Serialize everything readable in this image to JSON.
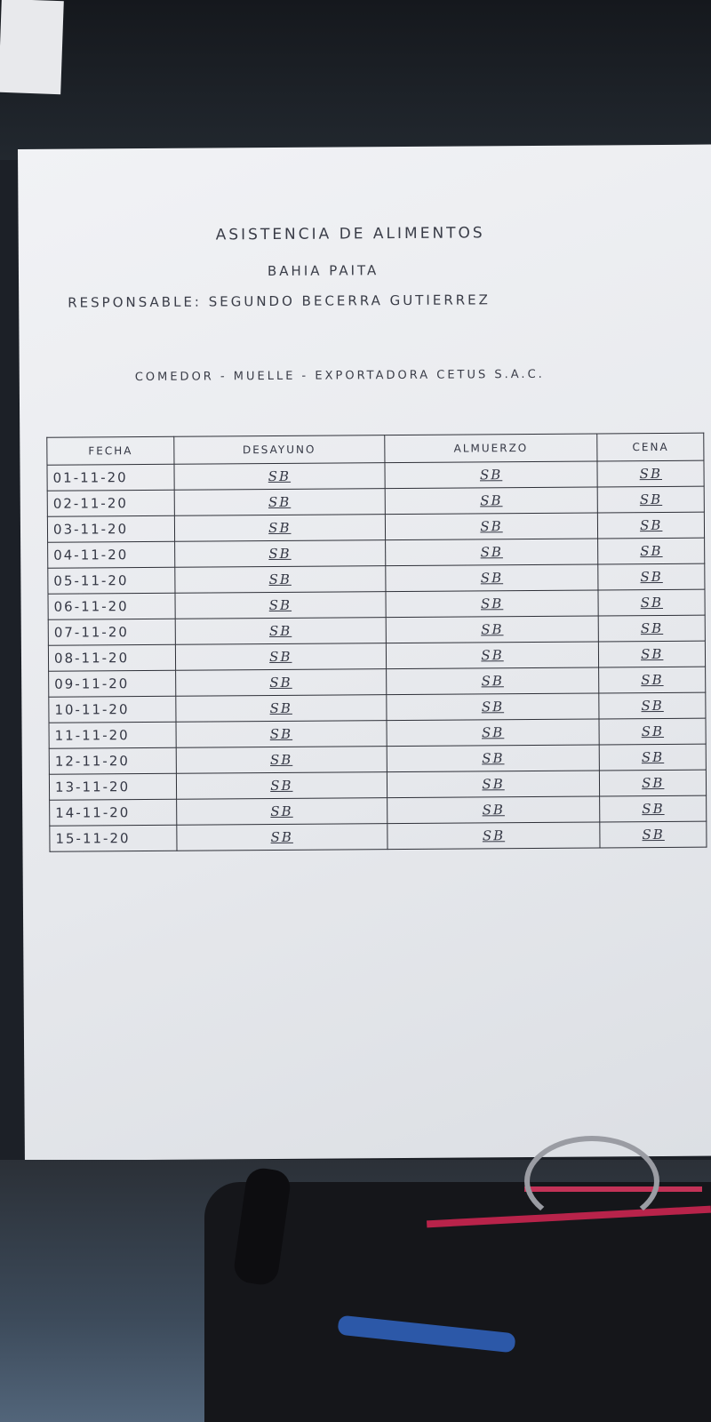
{
  "document": {
    "title": "ASISTENCIA DE ALIMENTOS",
    "location": "BAHIA PAITA",
    "responsible": "RESPONSABLE: SEGUNDO BECERRA GUTIERREZ",
    "dining": "COMEDOR - MUELLE - EXPORTADORA CETUS S.A.C."
  },
  "table": {
    "headers": [
      "FECHA",
      "DESAYUNO",
      "ALMUERZO",
      "CENA"
    ],
    "rows": [
      [
        "01-11-20",
        "SB",
        "SB",
        "SB"
      ],
      [
        "02-11-20",
        "SB",
        "SB",
        "SB"
      ],
      [
        "03-11-20",
        "SB",
        "SB",
        "SB"
      ],
      [
        "04-11-20",
        "SB",
        "SB",
        "SB"
      ],
      [
        "05-11-20",
        "SB",
        "SB",
        "SB"
      ],
      [
        "06-11-20",
        "SB",
        "SB",
        "SB"
      ],
      [
        "07-11-20",
        "SB",
        "SB",
        "SB"
      ],
      [
        "08-11-20",
        "SB",
        "SB",
        "SB"
      ],
      [
        "09-11-20",
        "SB",
        "SB",
        "SB"
      ],
      [
        "10-11-20",
        "SB",
        "SB",
        "SB"
      ],
      [
        "11-11-20",
        "SB",
        "SB",
        "SB"
      ],
      [
        "12-11-20",
        "SB",
        "SB",
        "SB"
      ],
      [
        "13-11-20",
        "SB",
        "SB",
        "SB"
      ],
      [
        "14-11-20",
        "SB",
        "SB",
        "SB"
      ],
      [
        "15-11-20",
        "SB",
        "SB",
        "SB"
      ]
    ]
  }
}
